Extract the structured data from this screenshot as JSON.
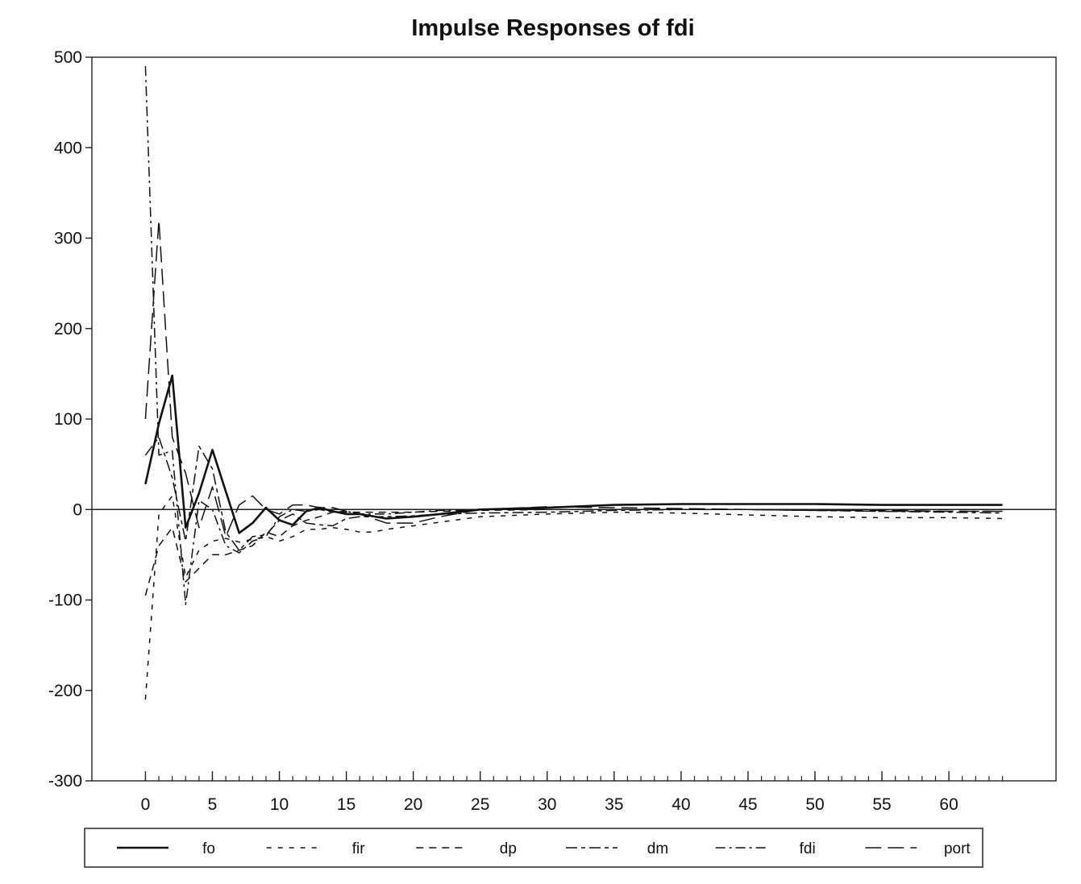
{
  "chart_data": {
    "type": "line",
    "title": "Impulse Responses of fdi",
    "xlabel": "",
    "ylabel": "",
    "xlim": [
      -4,
      68
    ],
    "ylim": [
      -300,
      500
    ],
    "xticks": [
      0,
      5,
      10,
      15,
      20,
      25,
      30,
      35,
      40,
      45,
      50,
      55,
      60
    ],
    "yticks": [
      500,
      400,
      300,
      200,
      100,
      0,
      -100,
      -200,
      -300
    ],
    "minor_xtick_step": 1,
    "zero_line": true,
    "grid": false,
    "legend_position": "bottom",
    "series": [
      {
        "name": "fo",
        "dash": "solid",
        "width": 2.6,
        "x": [
          0,
          1,
          2,
          3,
          4,
          5,
          6,
          7,
          8,
          9,
          10,
          11,
          12,
          13,
          14,
          15,
          16,
          18,
          20,
          22,
          25,
          30,
          35,
          40,
          45,
          50,
          55,
          60,
          64
        ],
        "y": [
          28,
          95,
          148,
          -20,
          18,
          66,
          20,
          -26,
          -15,
          2,
          -12,
          -17,
          -2,
          2,
          -2,
          -5,
          -5,
          -10,
          -8,
          -5,
          0,
          2,
          5,
          6,
          6,
          6,
          5,
          5,
          5
        ]
      },
      {
        "name": "fir",
        "dash": "6,8",
        "width": 1.5,
        "x": [
          0,
          1,
          2,
          3,
          4,
          5,
          6,
          7,
          8,
          9,
          10,
          11,
          12,
          13,
          14,
          15,
          16,
          17,
          18,
          20,
          22,
          25,
          30,
          35,
          40,
          45,
          50,
          55,
          60,
          64
        ],
        "y": [
          -210,
          -5,
          15,
          -75,
          -45,
          -35,
          -32,
          -36,
          -33,
          -30,
          -35,
          -30,
          -22,
          -22,
          -20,
          -22,
          -25,
          -25,
          -22,
          -18,
          -14,
          -8,
          -5,
          -3,
          -4,
          -6,
          -8,
          -9,
          -9,
          -10
        ]
      },
      {
        "name": "dp",
        "dash": "9,7",
        "width": 1.5,
        "x": [
          0,
          1,
          2,
          3,
          4,
          5,
          6,
          7,
          8,
          9,
          10,
          11,
          12,
          13,
          14,
          15,
          16,
          18,
          20,
          22,
          25,
          30,
          35,
          40,
          45,
          50,
          55,
          60,
          64
        ],
        "y": [
          -95,
          -40,
          -20,
          -80,
          -65,
          -50,
          -50,
          -45,
          -40,
          -25,
          -30,
          -18,
          -12,
          -8,
          -3,
          -3,
          -3,
          -3,
          -3,
          -2,
          -1,
          0,
          0,
          0,
          0,
          -1,
          -2,
          -2,
          -2
        ]
      },
      {
        "name": "dm",
        "dash": "14,5,5,5",
        "width": 1.5,
        "x": [
          0,
          1,
          2,
          3,
          4,
          5,
          6,
          7,
          8,
          9,
          10,
          11,
          12,
          13,
          14,
          15,
          16,
          18,
          20,
          22,
          25,
          30,
          35,
          40,
          45,
          50,
          55,
          60,
          64
        ],
        "y": [
          60,
          80,
          35,
          -35,
          70,
          45,
          -25,
          -45,
          -30,
          -28,
          -12,
          -5,
          -15,
          -17,
          -18,
          -10,
          -8,
          -8,
          -7,
          -5,
          -4,
          -3,
          -1,
          0,
          0,
          -1,
          -2,
          -3,
          -4
        ]
      },
      {
        "name": "fdi",
        "dash": "12,5,3,5",
        "width": 1.5,
        "x": [
          0,
          1,
          2,
          3,
          4,
          5,
          6,
          7,
          8,
          9,
          10,
          11,
          12,
          13,
          14,
          15,
          16,
          18,
          20,
          22,
          25,
          30,
          35,
          40,
          45,
          50,
          55,
          60,
          64
        ],
        "y": [
          490,
          60,
          65,
          -105,
          10,
          0,
          -40,
          -48,
          -35,
          -30,
          -8,
          0,
          -2,
          0,
          -3,
          -2,
          -5,
          -5,
          -3,
          -1,
          0,
          0,
          0,
          0,
          0,
          0,
          0,
          0,
          0
        ]
      },
      {
        "name": "port",
        "dash": "20,8",
        "width": 1.5,
        "x": [
          0,
          1,
          2,
          3,
          4,
          5,
          6,
          7,
          8,
          9,
          10,
          11,
          12,
          13,
          14,
          15,
          16,
          18,
          20,
          22,
          25,
          30,
          35,
          40,
          45,
          50,
          55,
          60,
          64
        ],
        "y": [
          100,
          320,
          80,
          40,
          -20,
          25,
          -30,
          5,
          15,
          0,
          -5,
          5,
          5,
          2,
          2,
          -2,
          -5,
          -15,
          -15,
          -8,
          0,
          3,
          2,
          1,
          0,
          -1,
          -1,
          -2,
          -2
        ]
      }
    ]
  }
}
